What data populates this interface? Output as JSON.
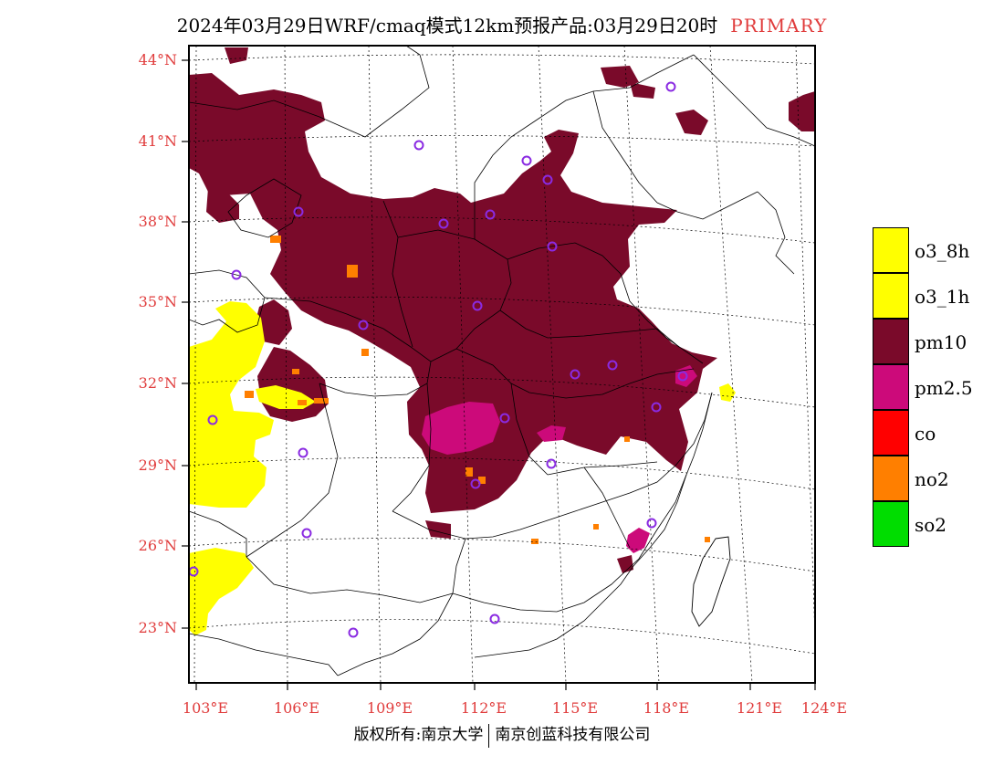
{
  "title": {
    "main": "2024年03月29日WRF/cmaq模式12km预报产品:03月29日20时",
    "tag": "PRIMARY",
    "tag_color": "#e03c3c"
  },
  "axes": {
    "lat_labels": [
      "44°N",
      "41°N",
      "38°N",
      "35°N",
      "32°N",
      "29°N",
      "26°N",
      "23°N"
    ],
    "lon_labels": [
      "103°E",
      "106°E",
      "109°E",
      "112°E",
      "115°E",
      "118°E",
      "121°E",
      "124°E"
    ]
  },
  "legend": [
    {
      "label": "o3_8h",
      "color": "#ffff00",
      "icon": "o3-8h-swatch"
    },
    {
      "label": "o3_1h",
      "color": "#ffff00",
      "icon": "o3-1h-swatch"
    },
    {
      "label": "pm10",
      "color": "#7a0a2a",
      "icon": "pm10-swatch"
    },
    {
      "label": "pm2.5",
      "color": "#cc0a7a",
      "icon": "pm25-swatch"
    },
    {
      "label": "co",
      "color": "#ff0000",
      "icon": "co-swatch"
    },
    {
      "label": "no2",
      "color": "#ff7f00",
      "icon": "no2-swatch"
    },
    {
      "label": "so2",
      "color": "#00dd00",
      "icon": "so2-swatch"
    }
  ],
  "footer": {
    "left": "版权所有:南京大学",
    "right": "南京创蓝科技有限公司"
  },
  "colors": {
    "pm10": "#7a0a2a",
    "pm25": "#cc0a7a",
    "o3": "#ffff00",
    "no2": "#ff7f00",
    "station_marker": "#8a2be2",
    "axis_label": "#e03c3c"
  }
}
